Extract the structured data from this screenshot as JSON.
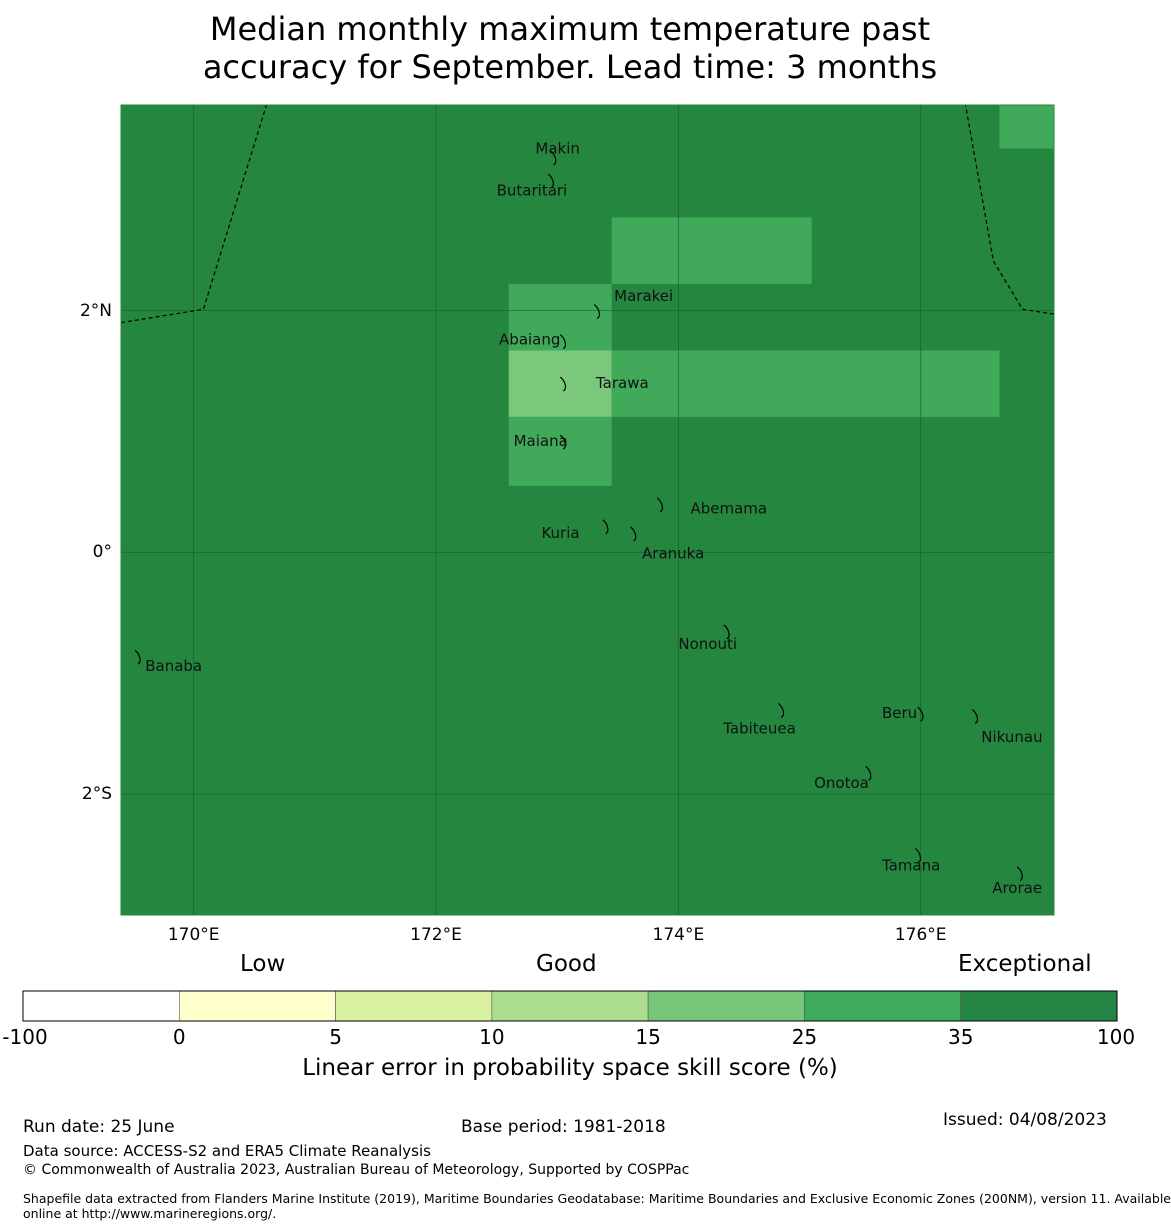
{
  "title": {
    "line1": "Median monthly maximum temperature past",
    "line2": "accuracy for September. Lead time: 3 months"
  },
  "map": {
    "lon_range": [
      169.4,
      177.1
    ],
    "lat_range": [
      -3.0,
      3.7
    ],
    "background_color": "#25873f",
    "x_ticks": [
      {
        "lon": 170,
        "label": "170°E"
      },
      {
        "lon": 172,
        "label": "172°E"
      },
      {
        "lon": 174,
        "label": "174°E"
      },
      {
        "lon": 176,
        "label": "176°E"
      }
    ],
    "y_ticks": [
      {
        "lat": 2,
        "label": "2°N"
      },
      {
        "lat": 0,
        "label": "0°"
      },
      {
        "lat": -2,
        "label": "2°S"
      }
    ],
    "cells": [
      {
        "lon0": 176.65,
        "lon1": 177.1,
        "lat0": 3.34,
        "lat1": 3.7,
        "color": "#40aa5a"
      },
      {
        "lon0": 173.45,
        "lon1": 175.1,
        "lat0": 2.22,
        "lat1": 2.77,
        "color": "#40aa5a"
      },
      {
        "lon0": 172.6,
        "lon1": 173.45,
        "lat0": 1.67,
        "lat1": 2.22,
        "color": "#40aa5a"
      },
      {
        "lon0": 172.6,
        "lon1": 173.45,
        "lat0": 1.12,
        "lat1": 1.67,
        "color": "#7bc77c"
      },
      {
        "lon0": 173.45,
        "lon1": 176.65,
        "lat0": 1.12,
        "lat1": 1.67,
        "color": "#40aa5a"
      },
      {
        "lon0": 172.6,
        "lon1": 173.45,
        "lat0": 0.55,
        "lat1": 1.12,
        "color": "#40aa5a"
      }
    ],
    "boundaries": [
      [
        [
          169.4,
          1.9
        ],
        [
          170.08,
          2.01
        ],
        [
          170.6,
          3.7
        ]
      ],
      [
        [
          177.1,
          1.97
        ],
        [
          176.84,
          2.01
        ],
        [
          176.6,
          2.41
        ],
        [
          176.37,
          3.7
        ]
      ]
    ],
    "islands": [
      {
        "name": "Makin",
        "lon": 172.97,
        "lat": 3.27,
        "label": "Makin",
        "anchor": "start",
        "label_lon": 172.82,
        "label_lat": 3.3
      },
      {
        "name": "Butaritari",
        "lon": 172.95,
        "lat": 3.08,
        "label": "Butaritari",
        "anchor": "start",
        "label_lon": 172.5,
        "label_lat": 2.95
      },
      {
        "name": "Marakei",
        "lon": 173.33,
        "lat": 2.0,
        "label": "Marakei",
        "anchor": "start",
        "label_lon": 173.47,
        "label_lat": 2.08
      },
      {
        "name": "Abaiang",
        "lon": 173.05,
        "lat": 1.75,
        "label": "Abaiang",
        "anchor": "start",
        "label_lon": 172.52,
        "label_lat": 1.72
      },
      {
        "name": "Tarawa",
        "lon": 173.05,
        "lat": 1.4,
        "label": "Tarawa",
        "anchor": "start",
        "label_lon": 173.32,
        "label_lat": 1.36
      },
      {
        "name": "Maiana",
        "lon": 173.05,
        "lat": 0.92,
        "label": "Maiana",
        "anchor": "start",
        "label_lon": 172.64,
        "label_lat": 0.88
      },
      {
        "name": "Abemama",
        "lon": 173.85,
        "lat": 0.4,
        "label": "Abemama",
        "anchor": "start",
        "label_lon": 174.1,
        "label_lat": 0.32
      },
      {
        "name": "Kuria",
        "lon": 173.4,
        "lat": 0.22,
        "label": "Kuria",
        "anchor": "start",
        "label_lon": 172.87,
        "label_lat": 0.12
      },
      {
        "name": "Aranuka",
        "lon": 173.63,
        "lat": 0.16,
        "label": "Aranuka",
        "anchor": "start",
        "label_lon": 173.7,
        "label_lat": -0.05
      },
      {
        "name": "Nonouti",
        "lon": 174.4,
        "lat": -0.65,
        "label": "Nonouti",
        "anchor": "start",
        "label_lon": 174.0,
        "label_lat": -0.8
      },
      {
        "name": "Banaba",
        "lon": 169.54,
        "lat": -0.86,
        "label": "Banaba",
        "anchor": "start",
        "label_lon": 169.6,
        "label_lat": -0.98
      },
      {
        "name": "Tabiteuea",
        "lon": 174.85,
        "lat": -1.3,
        "label": "Tabiteuea",
        "anchor": "start",
        "label_lon": 174.37,
        "label_lat": -1.5
      },
      {
        "name": "Beru",
        "lon": 176.0,
        "lat": -1.33,
        "label": "Beru",
        "anchor": "start",
        "label_lon": 175.68,
        "label_lat": -1.37
      },
      {
        "name": "Nikunau",
        "lon": 176.45,
        "lat": -1.35,
        "label": "Nikunau",
        "anchor": "start",
        "label_lon": 176.5,
        "label_lat": -1.57
      },
      {
        "name": "Onotoa",
        "lon": 175.57,
        "lat": -1.82,
        "label": "Onotoa",
        "anchor": "start",
        "label_lon": 175.12,
        "label_lat": -1.95
      },
      {
        "name": "Tamana",
        "lon": 175.98,
        "lat": -2.5,
        "label": "Tamana",
        "anchor": "start",
        "label_lon": 175.68,
        "label_lat": -2.63
      },
      {
        "name": "Arorae",
        "lon": 176.82,
        "lat": -2.65,
        "label": "Arorae",
        "anchor": "start",
        "label_lon": 176.59,
        "label_lat": -2.82
      }
    ]
  },
  "colorbar": {
    "category_labels": {
      "low": "Low",
      "good": "Good",
      "exceptional": "Exceptional"
    },
    "boundaries": [
      "-100",
      "0",
      "5",
      "10",
      "15",
      "25",
      "35",
      "100"
    ],
    "colors": [
      "#ffffff",
      "#ffffcc",
      "#d9f0a3",
      "#addd8e",
      "#78c679",
      "#41ab5d",
      "#238443"
    ],
    "label": "Linear error in probability space skill score (%)"
  },
  "footer": {
    "run_date": "Run date: 25 June",
    "base_period": "Base period: 1981-2018",
    "issued": "Issued: 04/08/2023",
    "data_source": "Data source: ACCESS-S2 and ERA5 Climate Reanalysis",
    "copyright": "© Commonwealth of Australia 2023, Australian Bureau of Meteorology, Supported by COSPPac",
    "shapefile_line1": "Shapefile data extracted from Flanders Marine Institute (2019), Maritime Boundaries Geodatabase: Maritime Boundaries and Exclusive Economic Zones (200NM), version 11. Available",
    "shapefile_line2": "online at http://www.marineregions.org/."
  }
}
